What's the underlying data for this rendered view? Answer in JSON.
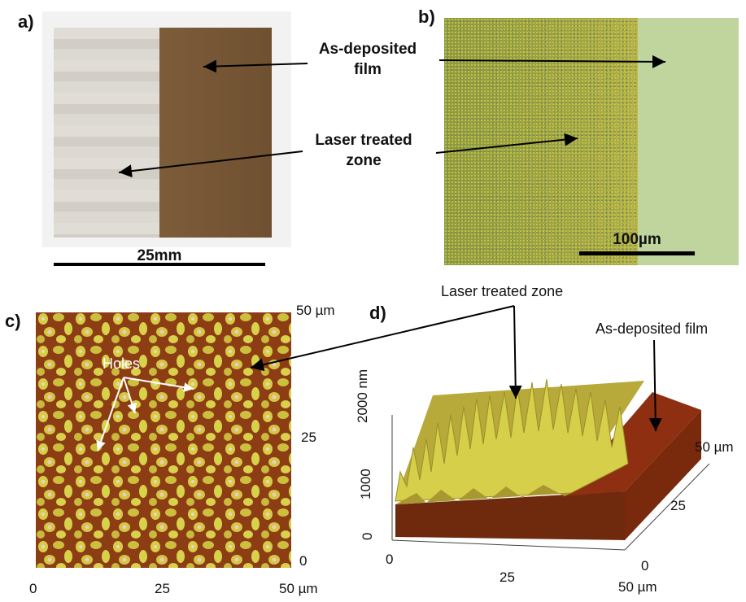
{
  "panels": {
    "a": {
      "label": "a)",
      "scale_label": "25mm"
    },
    "b": {
      "label": "b)",
      "scale_label": "100µm"
    },
    "c": {
      "label": "c)",
      "holes_label": "Holes",
      "x_ticks": [
        "0",
        "25",
        "50 µm"
      ],
      "y_ticks": [
        "0",
        "25",
        "50 µm"
      ]
    },
    "d": {
      "label": "d)",
      "laser_label": "Laser treated zone",
      "asdep_label": "As-deposited film",
      "z_ticks": [
        "0",
        "1000",
        "2000 nm"
      ],
      "x_ticks": [
        "0",
        "25",
        "50 µm"
      ],
      "y_ticks": [
        "0",
        "25",
        "50 µm"
      ]
    }
  },
  "annotations": {
    "as_deposited_line1": "As-deposited",
    "as_deposited_line2": "film",
    "laser_line1": "Laser treated",
    "laser_line2": "zone"
  },
  "colors": {
    "sample_light": "#d9d6cf",
    "sample_dark": "#7a5a38",
    "micrograph_treated": "#9aa440",
    "micrograph_film": "#bcd39a",
    "afm_dark": "#8a3a12",
    "afm_light": "#d8cf45"
  }
}
